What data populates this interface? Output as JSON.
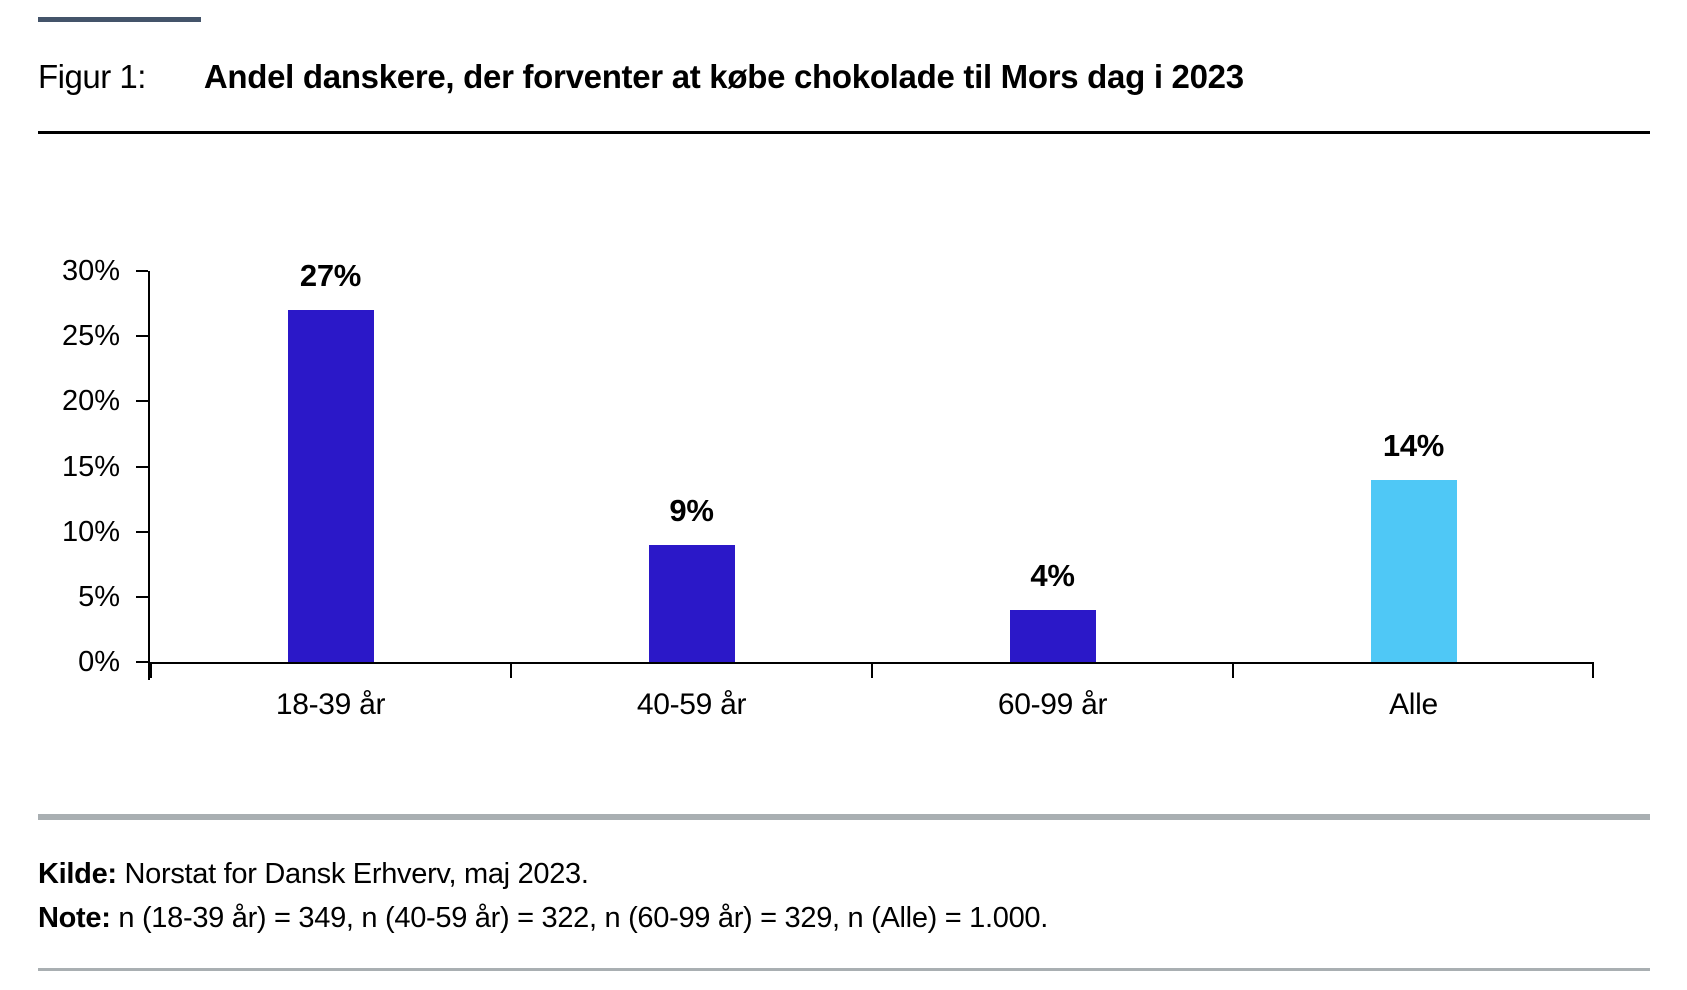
{
  "header": {
    "figure_label": "Figur 1:",
    "title": "Andel danskere, der forventer at købe chokolade til Mors dag i 2023"
  },
  "chart_data": {
    "type": "bar",
    "categories": [
      "18-39 år",
      "40-59 år",
      "60-99 år",
      "Alle"
    ],
    "values": [
      27,
      9,
      4,
      14
    ],
    "value_labels": [
      "27%",
      "9%",
      "4%",
      "14%"
    ],
    "bar_colors": [
      "#2B18C8",
      "#2B18C8",
      "#2B18C8",
      "#4FC8F6"
    ],
    "title": "Andel danskere, der forventer at købe chokolade til Mors dag i 2023",
    "xlabel": "",
    "ylabel": "",
    "ylim": [
      0,
      30
    ],
    "ytick_step": 5,
    "ytick_labels": [
      "0%",
      "5%",
      "10%",
      "15%",
      "20%",
      "25%",
      "30%"
    ],
    "grid": false,
    "legend_position": "none"
  },
  "footer": {
    "source_label": "Kilde:",
    "source_text": " Norstat for Dansk Erhverv, maj 2023.",
    "note_label": "Note:",
    "note_text": " n (18-39 år) = 349, n (40-59 år) = 322, n (60-99 år) = 329, n (Alle) = 1.000."
  },
  "colors": {
    "accent_bar": "#44546A",
    "bar_primary": "#2B18C8",
    "bar_highlight": "#4FC8F6",
    "title_divider": "#000000",
    "separator_gray": "#A9AFB2",
    "axis_black": "#000000"
  }
}
